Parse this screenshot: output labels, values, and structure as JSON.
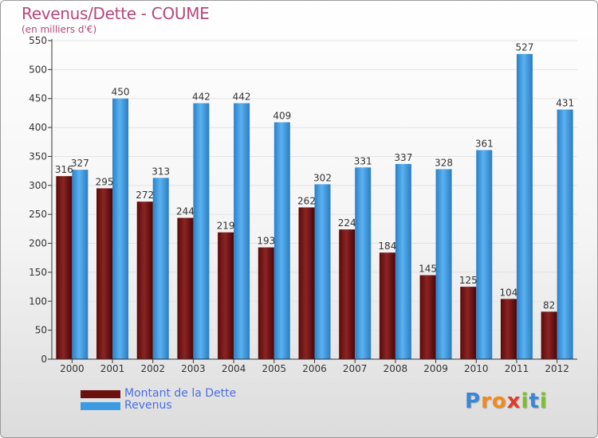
{
  "header": {
    "title": "Revenus/Dette - COUME",
    "subtitle": "(en milliers d'€)"
  },
  "chart_data": {
    "type": "bar",
    "categories": [
      "2000",
      "2001",
      "2002",
      "2003",
      "2004",
      "2005",
      "2006",
      "2007",
      "2008",
      "2009",
      "2010",
      "2011",
      "2012"
    ],
    "series": [
      {
        "name": "Montant de la Dette",
        "color": "#7a1616",
        "values": [
          316,
          295,
          272,
          244,
          219,
          193,
          262,
          224,
          184,
          145,
          125,
          104,
          82
        ]
      },
      {
        "name": "Revenus",
        "color": "#3d9be3",
        "values": [
          327,
          450,
          313,
          442,
          442,
          409,
          302,
          331,
          337,
          328,
          361,
          527,
          431
        ]
      }
    ],
    "ylim": [
      0,
      550
    ],
    "yticks": [
      0,
      50,
      100,
      150,
      200,
      250,
      300,
      350,
      400,
      450,
      500,
      550
    ],
    "grid": true,
    "legend": "bottom-left"
  },
  "legend": {
    "items": [
      {
        "label": "Montant de la Dette",
        "color": "#6b0f0f"
      },
      {
        "label": "Revenus",
        "color": "#3d9be3"
      }
    ]
  },
  "logo": {
    "letters": [
      {
        "ch": "P",
        "color": "#3a86d6"
      },
      {
        "ch": "r",
        "color": "#f08a1c"
      },
      {
        "ch": "o",
        "color": "#f08a1c"
      },
      {
        "ch": "x",
        "color": "#e23a2a"
      },
      {
        "ch": "i",
        "color": "#7cbf2a"
      },
      {
        "ch": "t",
        "color": "#3a86d6"
      },
      {
        "ch": "i",
        "color": "#7cbf2a"
      }
    ]
  }
}
